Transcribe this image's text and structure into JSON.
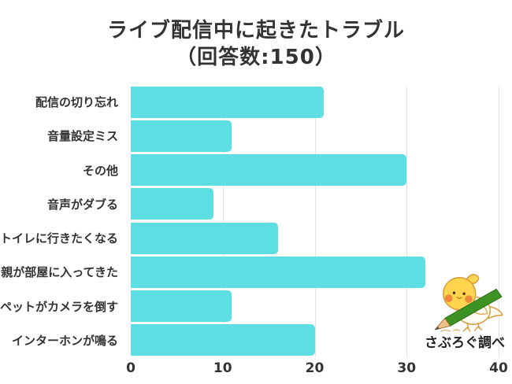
{
  "title": {
    "line1": "ライブ配信中に起きたトラブル",
    "line2": "（回答数:150）"
  },
  "chart_data": {
    "type": "bar",
    "orientation": "horizontal",
    "title": "ライブ配信中に起きたトラブル（回答数:150）",
    "categories": [
      "配信の切り忘れ",
      "音量設定ミス",
      "その他",
      "音声がダブる",
      "トイレに行きたくなる",
      "親が部屋に入ってきた",
      "ペットがカメラを倒す",
      "インターホンが鳴る"
    ],
    "values": [
      21,
      11,
      30,
      9,
      16,
      32,
      11,
      20
    ],
    "xlabel": "",
    "ylabel": "",
    "xlim": [
      0,
      40
    ],
    "xticks": [
      0,
      10,
      20,
      30,
      40
    ],
    "grid": true,
    "legend": false,
    "bar_color": "#5CDEE2",
    "grid_color": "#E4E4E4",
    "text_color": "#333333",
    "annotation": "さぶろぐ調べ"
  }
}
